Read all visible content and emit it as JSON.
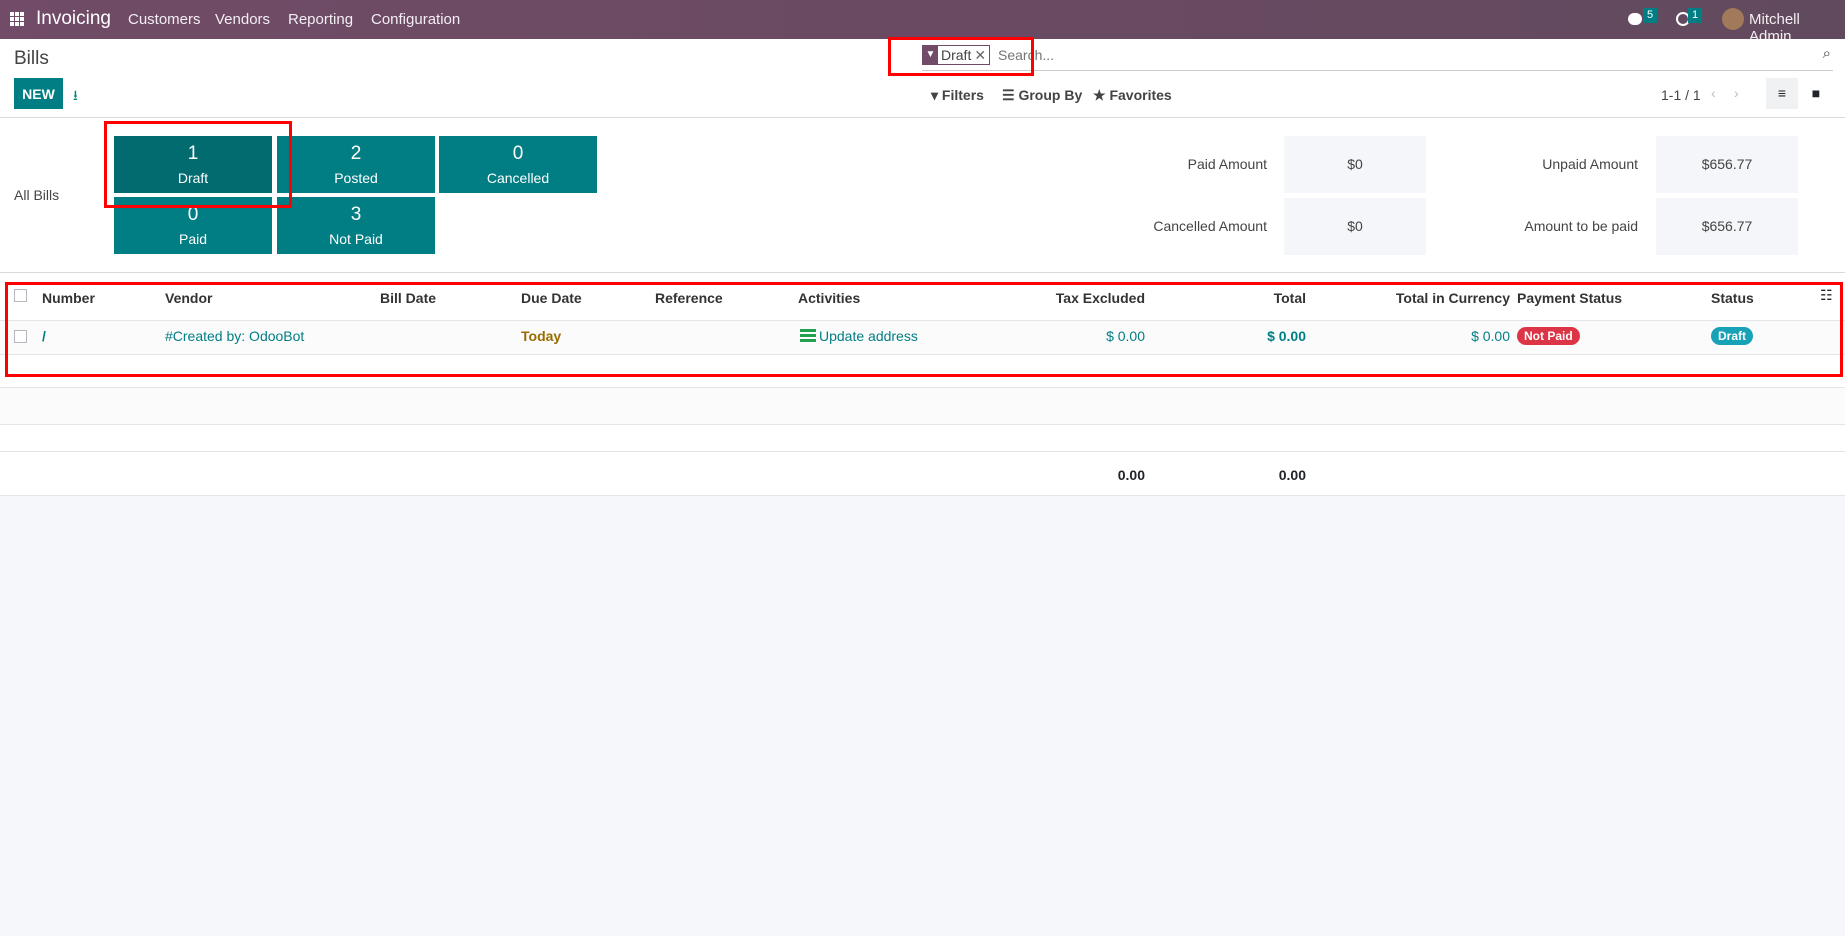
{
  "navbar": {
    "app_name": "Invoicing",
    "menu": [
      "Customers",
      "Vendors",
      "Reporting",
      "Configuration"
    ],
    "messages_count": "5",
    "activities_count": "1",
    "user": "Mitchell Admin"
  },
  "control_panel": {
    "title": "Bills",
    "new_label": "NEW",
    "facet": "Draft",
    "search_placeholder": "Search...",
    "filters": "Filters",
    "group_by": "Group By",
    "favorites": "Favorites",
    "pager": "1-1 / 1"
  },
  "dashboard": {
    "all_bills": "All Bills",
    "tiles": [
      {
        "count": "1",
        "label": "Draft"
      },
      {
        "count": "2",
        "label": "Posted"
      },
      {
        "count": "0",
        "label": "Cancelled"
      },
      {
        "count": "0",
        "label": "Paid"
      },
      {
        "count": "3",
        "label": "Not Paid"
      }
    ],
    "amounts": [
      {
        "label": "Paid Amount",
        "value": "$0"
      },
      {
        "label": "Cancelled Amount",
        "value": "$0"
      },
      {
        "label": "Unpaid Amount",
        "value": "$656.77"
      },
      {
        "label": "Amount to be paid",
        "value": "$656.77"
      }
    ]
  },
  "table": {
    "headers": [
      "Number",
      "Vendor",
      "Bill Date",
      "Due Date",
      "Reference",
      "Activities",
      "Tax Excluded",
      "Total",
      "Total in Currency",
      "Payment Status",
      "Status"
    ],
    "rows": [
      {
        "number": "/",
        "vendor": "#Created by: OdooBot",
        "bill_date": "",
        "due_date": "Today",
        "reference": "",
        "activity": "Update address",
        "tax_excluded": "$ 0.00",
        "total": "$ 0.00",
        "total_currency": "$ 0.00",
        "payment_status": "Not Paid",
        "status": "Draft"
      }
    ],
    "footer": {
      "tax_excluded": "0.00",
      "total": "0.00"
    }
  },
  "colors": {
    "navbar": "#714b67",
    "primary": "#017e84",
    "not_paid": "#dc3545",
    "draft": "#17a2b8",
    "link": "#017e84",
    "today": "#9a6b00",
    "annotation": "#ff0000"
  }
}
